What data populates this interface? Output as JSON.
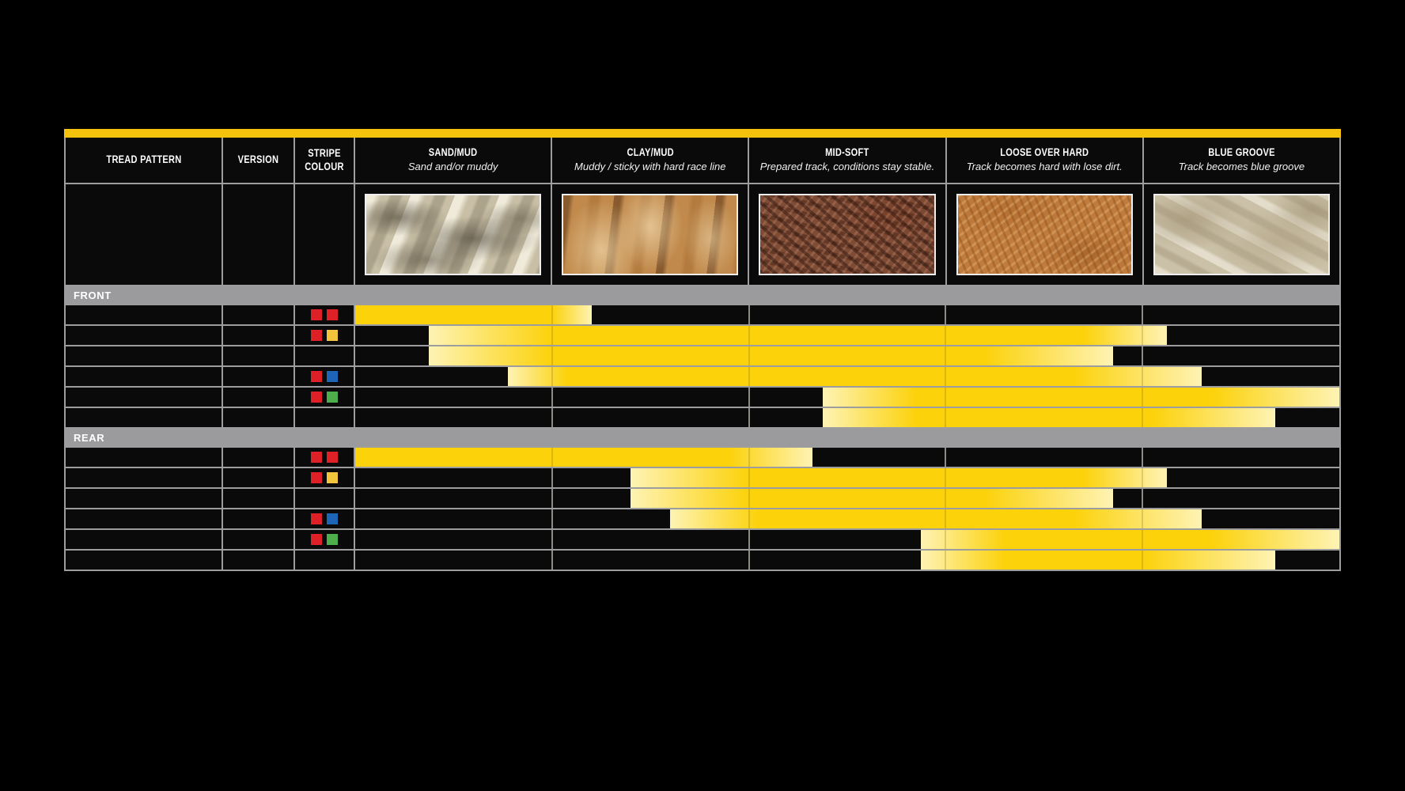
{
  "colors": {
    "accent_yellow": "#F4C10D",
    "bar_yellow": "#FCD20B",
    "bar_pale": "#FEF3B4",
    "band_gray": "#9B9B9D",
    "grid_gray": "#9D9D9F",
    "stripe_red": "#DD2127",
    "stripe_yellow": "#F2C53D",
    "stripe_blue": "#1E66B5",
    "stripe_green": "#4DAE4B"
  },
  "chart_data": {
    "type": "range-bar",
    "axis": {
      "range": [
        0,
        100
      ],
      "note": "horizontal axis = terrain spectrum; each of the 5 terrain columns spans 20 units; bar values give start/end of suitability with solid_start/solid_end marking the fully-saturated yellow zone (fade elsewhere)"
    },
    "columns": [
      {
        "label": "TREAD PATTERN"
      },
      {
        "label": "VERSION"
      },
      {
        "label": "STRIPE COLOUR"
      }
    ],
    "terrains": [
      {
        "name": "SAND/MUD",
        "desc": "Sand and/or muddy",
        "photo": "sand"
      },
      {
        "name": "CLAY/MUD",
        "desc": "Muddy / sticky with hard race line",
        "photo": "clay"
      },
      {
        "name": "MID-SOFT",
        "desc": "Prepared track, conditions stay stable.",
        "photo": "midsoft"
      },
      {
        "name": "LOOSE OVER HARD",
        "desc": "Track becomes hard with lose dirt.",
        "photo": "loose"
      },
      {
        "name": "BLUE GROOVE",
        "desc": "Track becomes blue groove",
        "photo": "bluegroove"
      }
    ],
    "sections": [
      {
        "label": "FRONT",
        "rows": [
          {
            "stripe_colours": [
              "red",
              "red"
            ],
            "range": {
              "start": 0,
              "solid_start": 0,
              "solid_end": 20,
              "end": 24
            }
          },
          {
            "stripe_colours": [
              "red",
              "yellow"
            ],
            "range": {
              "start": 7.5,
              "solid_start": 20,
              "solid_end": 74,
              "end": 82.5
            }
          },
          {
            "stripe_colours": [],
            "range": {
              "start": 7.5,
              "solid_start": 20,
              "solid_end": 64,
              "end": 77
            }
          },
          {
            "stripe_colours": [
              "red",
              "blue"
            ],
            "range": {
              "start": 15.5,
              "solid_start": 21.5,
              "solid_end": 73,
              "end": 86
            }
          },
          {
            "stripe_colours": [
              "red",
              "green"
            ],
            "range": {
              "start": 47.5,
              "solid_start": 57,
              "solid_end": 87,
              "end": 100
            }
          },
          {
            "stripe_colours": [],
            "range": {
              "start": 47.5,
              "solid_start": 57,
              "solid_end": 81,
              "end": 93.5
            }
          }
        ]
      },
      {
        "label": "REAR",
        "rows": [
          {
            "stripe_colours": [
              "red",
              "red"
            ],
            "range": {
              "start": 0,
              "solid_start": 0,
              "solid_end": 38,
              "end": 46.5
            }
          },
          {
            "stripe_colours": [
              "red",
              "yellow"
            ],
            "range": {
              "start": 28,
              "solid_start": 40,
              "solid_end": 74,
              "end": 82.5
            }
          },
          {
            "stripe_colours": [],
            "range": {
              "start": 28,
              "solid_start": 40,
              "solid_end": 64,
              "end": 77
            }
          },
          {
            "stripe_colours": [
              "red",
              "blue"
            ],
            "range": {
              "start": 32,
              "solid_start": 41,
              "solid_end": 73,
              "end": 86
            }
          },
          {
            "stripe_colours": [
              "red",
              "green"
            ],
            "range": {
              "start": 57.5,
              "solid_start": 66,
              "solid_end": 87,
              "end": 100
            }
          },
          {
            "stripe_colours": [],
            "range": {
              "start": 57.5,
              "solid_start": 66,
              "solid_end": 80,
              "end": 93.5
            }
          }
        ]
      }
    ]
  }
}
